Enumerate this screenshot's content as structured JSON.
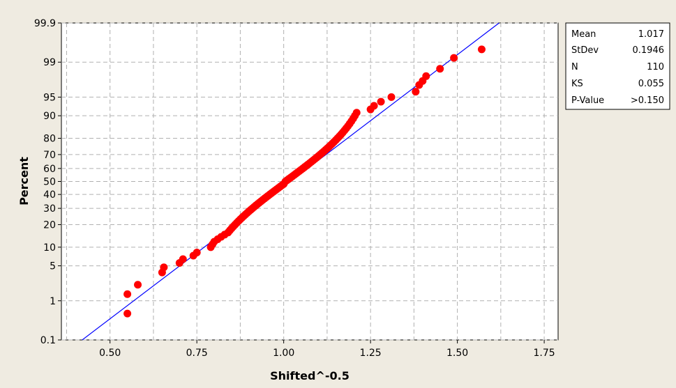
{
  "chart_data": {
    "type": "scatter",
    "plot_kind": "probability plot (normal)",
    "xlabel": "Shifted^-0.5",
    "ylabel": "Percent",
    "xlim": [
      0.36,
      1.79
    ],
    "ylim": [
      0.1,
      99.9
    ],
    "y_scale": "normal-probability",
    "x_ticks": [
      "0.50",
      "0.75",
      "1.00",
      "1.25",
      "1.50",
      "1.75"
    ],
    "x_tick_values": [
      0.5,
      0.75,
      1.0,
      1.25,
      1.5,
      1.75
    ],
    "y_ticks": [
      "0.1",
      "1",
      "5",
      "10",
      "20",
      "30",
      "40",
      "50",
      "60",
      "70",
      "80",
      "90",
      "95",
      "99",
      "99.9"
    ],
    "y_tick_values": [
      0.1,
      1,
      5,
      10,
      20,
      30,
      40,
      50,
      60,
      70,
      80,
      90,
      95,
      99,
      99.9
    ],
    "grid": true,
    "legend": "top-right",
    "fit_line": {
      "x": [
        0.42,
        1.62
      ],
      "y": [
        0.1,
        99.9
      ],
      "color": "#0000ff"
    },
    "point_color": "#ff0000",
    "points": {
      "x": [
        0.55,
        0.55,
        0.58,
        0.65,
        0.655,
        0.7,
        0.71,
        0.74,
        0.75,
        0.79,
        0.795,
        0.8,
        0.81,
        0.82,
        0.83,
        0.84,
        0.845,
        0.85,
        0.855,
        0.86,
        0.865,
        0.87,
        0.875,
        0.88,
        0.885,
        0.89,
        0.895,
        0.9,
        0.905,
        0.91,
        0.915,
        0.92,
        0.925,
        0.93,
        0.935,
        0.94,
        0.945,
        0.95,
        0.955,
        0.96,
        0.965,
        0.97,
        0.975,
        0.98,
        0.985,
        0.99,
        0.995,
        1.0,
        1.005,
        1.01,
        1.015,
        1.02,
        1.025,
        1.03,
        1.035,
        1.04,
        1.045,
        1.05,
        1.055,
        1.06,
        1.065,
        1.07,
        1.075,
        1.08,
        1.085,
        1.09,
        1.095,
        1.1,
        1.105,
        1.11,
        1.115,
        1.12,
        1.125,
        1.13,
        1.135,
        1.14,
        1.145,
        1.15,
        1.155,
        1.16,
        1.165,
        1.17,
        1.175,
        1.18,
        1.185,
        1.19,
        1.195,
        1.2,
        1.205,
        1.21,
        1.25,
        1.26,
        1.28,
        1.31,
        1.38,
        1.39,
        1.4,
        1.41,
        1.45,
        1.49,
        1.57
      ],
      "y": [
        0.5,
        1.4,
        2.2,
        3.8,
        4.7,
        5.6,
        6.5,
        7.4,
        8.3,
        10,
        11,
        12,
        13,
        14,
        15,
        16,
        17,
        18,
        19,
        20,
        21,
        22,
        23,
        24,
        25,
        26,
        27,
        28,
        29,
        30,
        31,
        32,
        33,
        34,
        35,
        36,
        37,
        38,
        39,
        40,
        41,
        42,
        43,
        44,
        45,
        46,
        47,
        48,
        50,
        51,
        52,
        53,
        54,
        55,
        56,
        57,
        58,
        59,
        60,
        61,
        62,
        63,
        64,
        65,
        66,
        67,
        68,
        69,
        70,
        71,
        72,
        73,
        74,
        75,
        76,
        77,
        78,
        79,
        80,
        81,
        82,
        83,
        84,
        85,
        86,
        87,
        88,
        89,
        90,
        91,
        92,
        93,
        94,
        95,
        96,
        97,
        97.5,
        98,
        98.6,
        99.2,
        99.5
      ]
    }
  },
  "stats": {
    "rows": [
      {
        "label": "Mean",
        "value": "1.017"
      },
      {
        "label": "StDev",
        "value": "0.1946"
      },
      {
        "label": "N",
        "value": "110"
      },
      {
        "label": "KS",
        "value": "0.055"
      },
      {
        "label": "P-Value",
        "value": ">0.150"
      }
    ]
  }
}
